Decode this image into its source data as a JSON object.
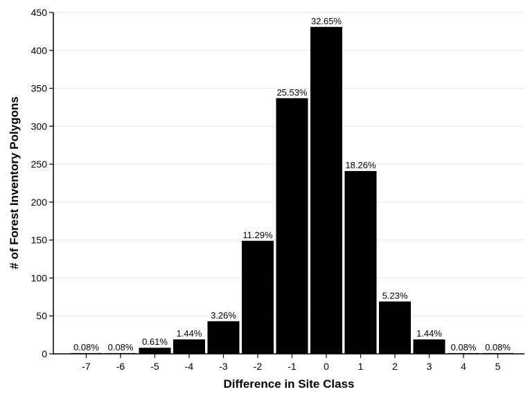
{
  "chart_data": {
    "type": "bar",
    "title": "",
    "xlabel": "Difference in Site Class",
    "ylabel": "# of Forest Inventory Polygons",
    "categories": [
      "-7",
      "-6",
      "-5",
      "-4",
      "-3",
      "-2",
      "-1",
      "0",
      "1",
      "2",
      "3",
      "4",
      "5"
    ],
    "values": [
      1,
      1,
      8,
      19,
      43,
      149,
      337,
      431,
      241,
      69,
      19,
      1,
      1
    ],
    "data_labels": [
      "0.08%",
      "0.08%",
      "0.61%",
      "1.44%",
      "3.26%",
      "11.29%",
      "25.53%",
      "32.65%",
      "18.26%",
      "5.23%",
      "1.44%",
      "0.08%",
      "0.08%"
    ],
    "ylim": [
      0,
      450
    ],
    "yticks": [
      0,
      50,
      100,
      150,
      200,
      250,
      300,
      350,
      400,
      450
    ],
    "grid": true,
    "legend": false,
    "bar_color": "#000000",
    "grid_color": "#e6e6e6"
  }
}
